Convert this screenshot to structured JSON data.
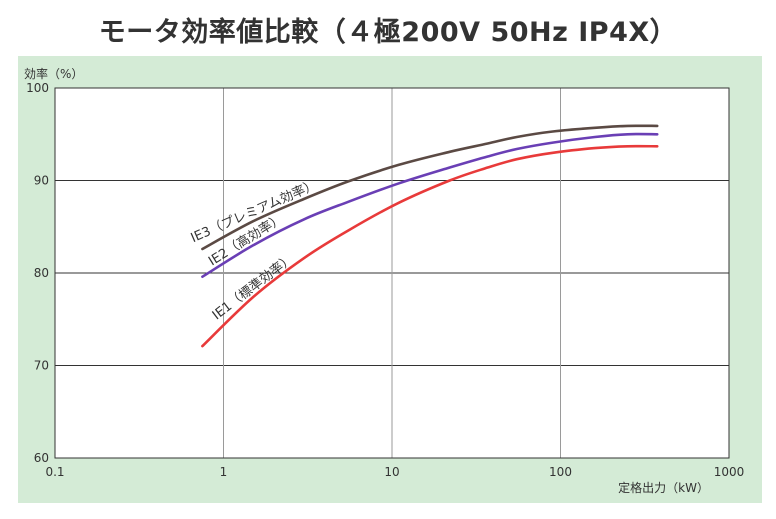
{
  "chart_data": {
    "type": "line",
    "title": "モータ効率値比較（４極200V 50Hz IP4X）",
    "ylabel": "効率（%）",
    "xlabel": "定格出力（kW）",
    "xscale": "log",
    "xlim": [
      0.1,
      1000
    ],
    "ylim": [
      60,
      100
    ],
    "xticks": [
      0.1,
      1,
      10,
      100,
      1000
    ],
    "xtick_labels": [
      "0.1",
      "1",
      "10",
      "100",
      "1000"
    ],
    "yticks": [
      60,
      70,
      80,
      90,
      100
    ],
    "ytick_labels": [
      "60",
      "70",
      "80",
      "90",
      "100"
    ],
    "grid": true,
    "series": [
      {
        "name": "IE3（プレミアム効率）",
        "color": "#5b4a44",
        "x": [
          0.75,
          1.5,
          3,
          5.5,
          11,
          22,
          37,
          55,
          90,
          160,
          250,
          375
        ],
        "y": [
          82.6,
          85.6,
          88.0,
          89.9,
          91.7,
          93.1,
          94.0,
          94.7,
          95.3,
          95.7,
          95.9,
          95.9
        ]
      },
      {
        "name": "IE2（高効率）",
        "color": "#6a3fb5",
        "x": [
          0.75,
          1.5,
          3,
          5.5,
          11,
          22,
          37,
          55,
          90,
          160,
          250,
          375
        ],
        "y": [
          79.6,
          83.0,
          85.8,
          87.7,
          89.7,
          91.4,
          92.6,
          93.4,
          94.1,
          94.7,
          95.0,
          95.0
        ]
      },
      {
        "name": "IE1（標準効率）",
        "color": "#e83a3a",
        "x": [
          0.75,
          1.5,
          3,
          5.5,
          11,
          22,
          37,
          55,
          90,
          160,
          250,
          375
        ],
        "y": [
          72.1,
          77.4,
          81.6,
          84.6,
          87.6,
          90.0,
          91.4,
          92.3,
          93.0,
          93.5,
          93.7,
          93.7
        ]
      }
    ]
  }
}
